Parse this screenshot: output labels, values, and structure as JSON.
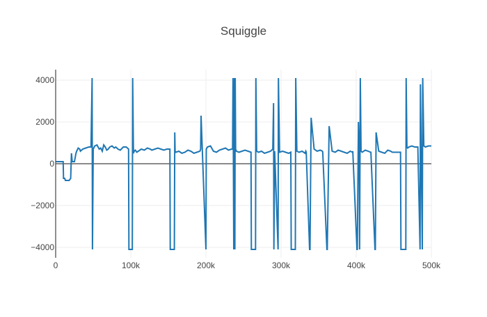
{
  "chart_data": {
    "type": "line",
    "title": "Squiggle",
    "xlabel": "",
    "ylabel": "",
    "xlim": [
      0,
      500000
    ],
    "ylim": [
      -4500,
      4500
    ],
    "x_ticks": [
      0,
      100000,
      200000,
      300000,
      400000,
      500000
    ],
    "x_tick_labels": [
      "0",
      "100k",
      "200k",
      "300k",
      "400k",
      "500k"
    ],
    "y_ticks": [
      -4000,
      -2000,
      0,
      2000,
      4000
    ],
    "y_tick_labels": [
      "−4000",
      "−2000",
      "0",
      "2000",
      "4000"
    ],
    "grid": true,
    "legend": "none",
    "colors": {
      "line": "#1f77b4",
      "grid": "#eeeeee",
      "zeroline": "#444444",
      "text": "#444444"
    },
    "series": [
      {
        "x": [
          0,
          10000,
          10500,
          12000,
          13000,
          18000,
          20000,
          21000,
          22000,
          25000,
          26000,
          27000,
          28000,
          30000,
          32000,
          33000,
          36000,
          40000,
          44000,
          47000,
          48500,
          49000,
          50000,
          52000,
          55000,
          58000,
          60000,
          62000,
          64000,
          66000,
          68000,
          70000,
          72000,
          75000,
          78000,
          80000,
          83000,
          86000,
          90000,
          94000,
          97000,
          97500,
          102000,
          102500,
          103500,
          104500,
          106000,
          108000,
          110000,
          114000,
          118000,
          122000,
          126000,
          128000,
          132000,
          136000,
          140000,
          144000,
          148000,
          152000,
          152500,
          158000,
          158500,
          159000,
          160000,
          164000,
          168000,
          172000,
          176000,
          180000,
          184000,
          188000,
          192000,
          193000,
          193500,
          200000,
          200500,
          202000,
          206000,
          210000,
          214000,
          218000,
          222000,
          226000,
          230000,
          234000,
          235500,
          236000,
          236500,
          237000,
          238000,
          238500,
          239000,
          239500,
          240500,
          244000,
          248000,
          252000,
          256000,
          260000,
          260500,
          266000,
          266500,
          267500,
          270000,
          274000,
          278000,
          282000,
          286000,
          289000,
          290000,
          290500,
          291500,
          296000,
          296500,
          298000,
          302000,
          306000,
          310000,
          313000,
          313500,
          319000,
          319500,
          321000,
          324000,
          328000,
          332000,
          333000,
          333500,
          338000,
          338500,
          340000,
          344000,
          348000,
          352000,
          355000,
          355500,
          361000,
          361500,
          364000,
          368000,
          372000,
          376000,
          380000,
          384000,
          388000,
          392000,
          395000,
          395500,
          401000,
          401500,
          403000,
          404000,
          404500,
          405500,
          406500,
          408000,
          412000,
          416000,
          419000,
          419500,
          425000,
          425500,
          426500,
          430000,
          434000,
          438000,
          442000,
          446000,
          448000,
          450000,
          459000,
          459500,
          466000,
          466500,
          467500,
          468500,
          470000,
          474000,
          478000,
          482000,
          485000,
          485500,
          488000,
          488500,
          490000,
          492000,
          496000,
          500000
        ],
        "y": [
          100,
          100,
          -700,
          -700,
          -800,
          -800,
          -700,
          500,
          100,
          100,
          300,
          500,
          600,
          750,
          700,
          600,
          700,
          750,
          800,
          800,
          4100,
          -4100,
          700,
          850,
          900,
          700,
          750,
          600,
          900,
          800,
          650,
          700,
          800,
          850,
          750,
          800,
          700,
          650,
          800,
          800,
          700,
          -4100,
          -4100,
          4100,
          500,
          600,
          650,
          550,
          600,
          700,
          650,
          750,
          700,
          650,
          700,
          750,
          700,
          650,
          700,
          700,
          -4100,
          -4100,
          1500,
          600,
          550,
          600,
          500,
          550,
          650,
          600,
          500,
          550,
          600,
          700,
          2300,
          -4100,
          700,
          800,
          850,
          600,
          550,
          650,
          700,
          750,
          650,
          700,
          700,
          4100,
          700,
          -4100,
          4100,
          -4100,
          4100,
          700,
          600,
          550,
          600,
          650,
          600,
          550,
          -4100,
          -4100,
          4100,
          600,
          550,
          600,
          500,
          550,
          600,
          700,
          2900,
          -4100,
          600,
          -4100,
          4100,
          550,
          600,
          550,
          500,
          550,
          -4100,
          -4100,
          4100,
          600,
          550,
          600,
          500,
          600,
          550,
          -4100,
          -4100,
          2200,
          700,
          600,
          650,
          600,
          550,
          -4100,
          -4100,
          1800,
          600,
          550,
          650,
          600,
          550,
          500,
          600,
          550,
          600,
          -4100,
          -4100,
          2000,
          600,
          -4100,
          4100,
          600,
          550,
          650,
          600,
          550,
          550,
          -4100,
          -4100,
          1500,
          600,
          550,
          500,
          650,
          600,
          550,
          550,
          550,
          -4100,
          -4100,
          4100,
          800,
          750,
          800,
          850,
          800,
          800,
          -4100,
          3800,
          -4100,
          4100,
          850,
          800,
          850,
          850
        ]
      }
    ]
  }
}
